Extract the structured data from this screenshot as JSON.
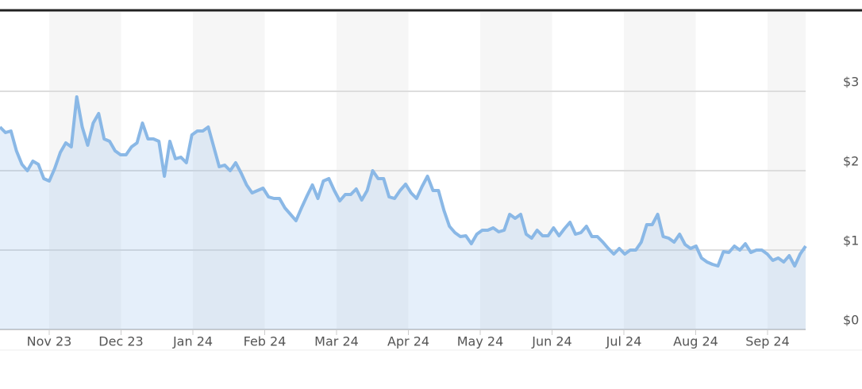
{
  "chart_data": {
    "type": "area",
    "xticks": [
      "Nov 23",
      "Dec 23",
      "Jan 24",
      "Feb 24",
      "Mar 24",
      "Apr 24",
      "May 24",
      "Jun 24",
      "Jul 24",
      "Aug 24",
      "Sep 24"
    ],
    "series": [
      {
        "color": "#8ab8e6",
        "values": [
          2.55,
          2.48,
          2.5,
          2.25,
          2.08,
          2.0,
          2.12,
          2.08,
          1.9,
          1.87,
          2.03,
          2.23,
          2.35,
          2.3,
          2.93,
          2.55,
          2.32,
          2.6,
          2.72,
          2.4,
          2.37,
          2.25,
          2.2,
          2.2,
          2.3,
          2.35,
          2.6,
          2.4,
          2.4,
          2.37,
          1.93,
          2.37,
          2.15,
          2.17,
          2.1,
          2.45,
          2.5,
          2.5,
          2.55,
          2.3,
          2.05,
          2.07,
          2.0,
          2.1,
          1.97,
          1.82,
          1.72,
          1.75,
          1.78,
          1.67,
          1.65,
          1.65,
          1.53,
          1.45,
          1.37,
          1.53,
          1.68,
          1.82,
          1.65,
          1.87,
          1.9,
          1.75,
          1.62,
          1.7,
          1.7,
          1.77,
          1.63,
          1.75,
          2.0,
          1.9,
          1.9,
          1.67,
          1.65,
          1.75,
          1.83,
          1.72,
          1.65,
          1.8,
          1.93,
          1.75,
          1.75,
          1.5,
          1.3,
          1.22,
          1.17,
          1.18,
          1.08,
          1.2,
          1.25,
          1.25,
          1.28,
          1.23,
          1.25,
          1.45,
          1.4,
          1.45,
          1.2,
          1.15,
          1.25,
          1.18,
          1.18,
          1.28,
          1.18,
          1.27,
          1.35,
          1.2,
          1.22,
          1.3,
          1.17,
          1.17,
          1.1,
          1.02,
          0.95,
          1.02,
          0.95,
          1.0,
          1.0,
          1.1,
          1.32,
          1.32,
          1.45,
          1.17,
          1.15,
          1.1,
          1.2,
          1.07,
          1.02,
          1.05,
          0.9,
          0.85,
          0.82,
          0.8,
          0.98,
          0.97,
          1.05,
          1.0,
          1.08,
          0.97,
          1.0,
          1.0,
          0.95,
          0.87,
          0.9,
          0.85,
          0.93,
          0.8,
          0.95,
          1.05
        ]
      }
    ],
    "ylim": [
      0,
      4
    ],
    "yticks": [
      {
        "value": 0,
        "label": "$0"
      },
      {
        "value": 1,
        "label": "$1"
      },
      {
        "value": 2,
        "label": "$2"
      },
      {
        "value": 3,
        "label": "$3"
      }
    ],
    "grid": true
  }
}
